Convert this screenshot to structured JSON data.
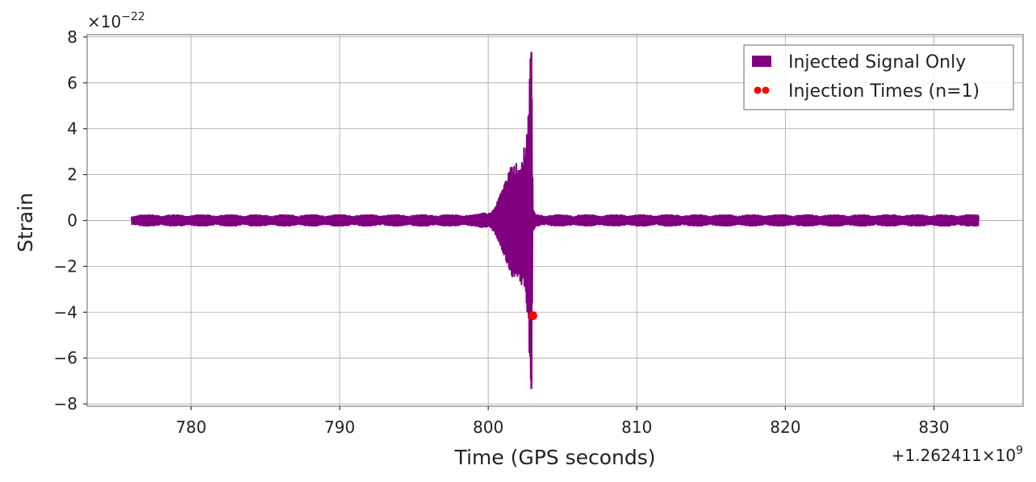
{
  "chart_data": {
    "type": "line",
    "title": "",
    "xlabel": "Time (GPS seconds)",
    "ylabel": "Strain",
    "x_offset_label": "+1.262411×10",
    "x_offset_exponent": "9",
    "y_multiplier_label": "×10",
    "y_multiplier_exponent": "−22",
    "xlim": [
      773,
      836
    ],
    "ylim": [
      -8.1,
      8.1
    ],
    "x_ticks": [
      780,
      790,
      800,
      810,
      820,
      830
    ],
    "x_tick_labels": [
      "780",
      "790",
      "800",
      "810",
      "820",
      "830"
    ],
    "y_ticks": [
      -8,
      -6,
      -4,
      -2,
      0,
      2,
      4,
      6,
      8
    ],
    "y_tick_labels": [
      "−8",
      "−6",
      "−4",
      "−2",
      "0",
      "2",
      "4",
      "6",
      "8"
    ],
    "grid": true,
    "legend_position": "top-right",
    "series": [
      {
        "name": "Injected Signal Only",
        "color": "#800080",
        "kind": "strain-envelope",
        "t_start": 776.0,
        "t_end": 833.0,
        "noise_amplitude": 0.2,
        "envelope": [
          [
            776.0,
            0.2
          ],
          [
            799.0,
            0.2
          ],
          [
            800.0,
            0.3
          ],
          [
            800.5,
            0.6
          ],
          [
            801.0,
            1.2
          ],
          [
            801.5,
            2.0
          ],
          [
            802.0,
            2.9
          ],
          [
            802.5,
            2.9
          ],
          [
            802.7,
            4.0
          ],
          [
            802.8,
            5.5
          ],
          [
            802.9,
            7.35
          ],
          [
            803.0,
            0.4
          ],
          [
            803.2,
            0.2
          ],
          [
            833.0,
            0.2
          ]
        ]
      },
      {
        "name": "Injection Times (n=1)",
        "color": "#ff0000",
        "kind": "markers",
        "points": [
          [
            803.0,
            -4.15
          ]
        ]
      }
    ]
  }
}
